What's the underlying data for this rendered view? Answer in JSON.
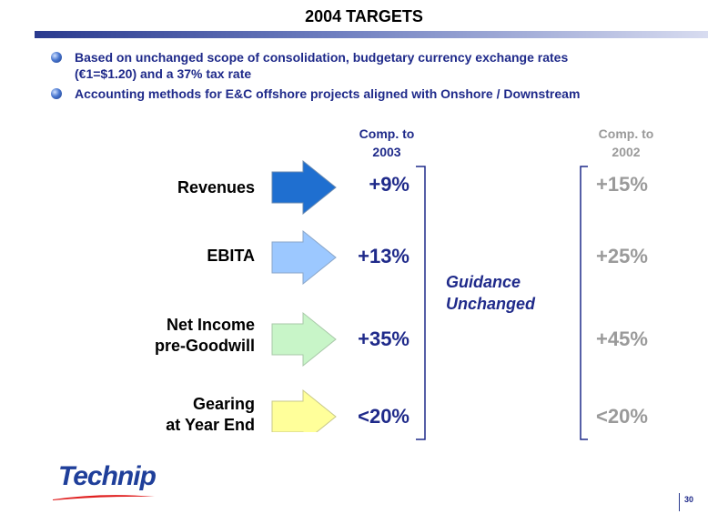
{
  "title": "2004 TARGETS",
  "bullets": [
    {
      "line1": "Based on unchanged scope of consolidation, budgetary currency exchange rates",
      "line2": "(€1=$1.20) and a 37% tax rate"
    },
    {
      "line1": "Accounting methods for E&C offshore projects aligned with Onshore / Downstream"
    }
  ],
  "columns": {
    "comp2003": {
      "line1": "Comp. to",
      "line2": "2003"
    },
    "comp2002": {
      "line1": "Comp. to",
      "line2": "2002"
    }
  },
  "rows": [
    {
      "label1": "Revenues",
      "label2": "",
      "v2003": "+9%",
      "v2002": "+15%",
      "arrow_color": "#1f6fd0"
    },
    {
      "label1": "EBITA",
      "label2": "",
      "v2003": "+13%",
      "v2002": "+25%",
      "arrow_color": "#9cc8ff"
    },
    {
      "label1": "Net Income",
      "label2": "pre-Goodwill",
      "v2003": "+35%",
      "v2002": "+45%",
      "arrow_color": "#c8f5c8"
    },
    {
      "label1": "Gearing",
      "label2": "at Year End",
      "v2003": "<20%",
      "v2002": "<20%",
      "arrow_color": "#ffff9a"
    }
  ],
  "guidance": {
    "line1": "Guidance",
    "line2": "Unchanged"
  },
  "logo": "Technip",
  "page_number": "30"
}
